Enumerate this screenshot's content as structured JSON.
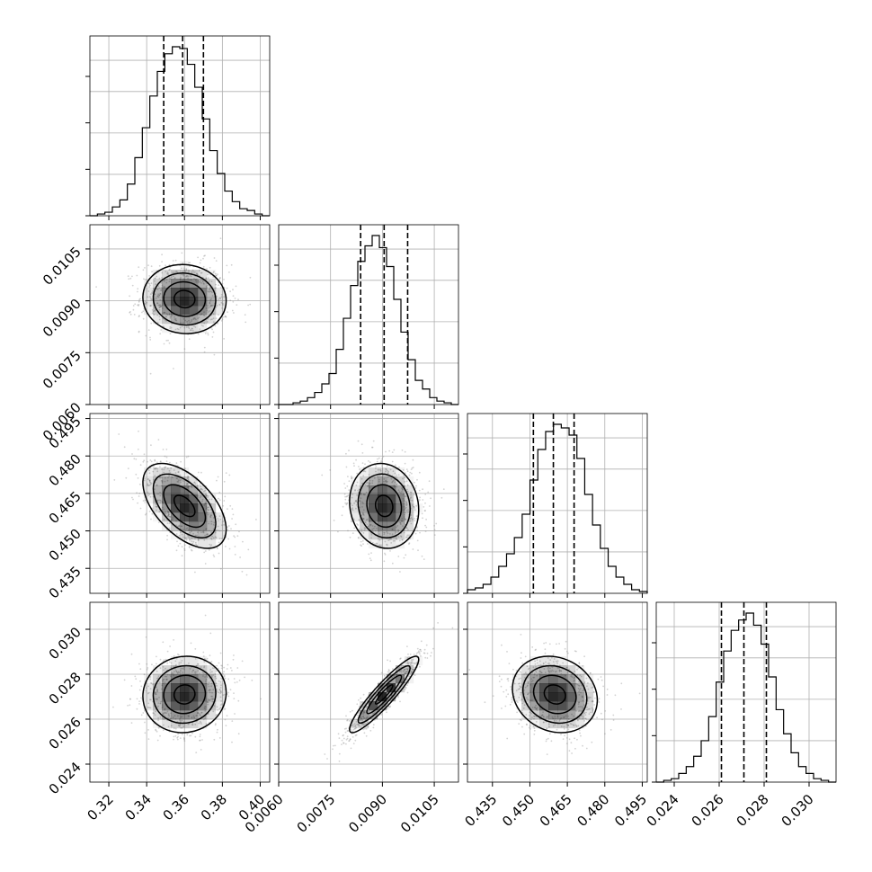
{
  "chart_data": {
    "type": "corner",
    "grid": true,
    "parameters": [
      {
        "id": "p0",
        "range": [
          0.31,
          0.405
        ],
        "ticks": [
          "0.32",
          "0.34",
          "0.36",
          "0.38",
          "0.40"
        ],
        "tick_values": [
          0.32,
          0.34,
          0.36,
          0.38,
          0.4
        ],
        "quantiles": [
          0.349,
          0.359,
          0.37
        ],
        "histogram": [
          0,
          1,
          2,
          5,
          9,
          18,
          33,
          50,
          68,
          82,
          92,
          96,
          95,
          86,
          73,
          55,
          37,
          24,
          14,
          8,
          4,
          3,
          1,
          0
        ]
      },
      {
        "id": "p1",
        "range": [
          0.006,
          0.0112
        ],
        "ticks": [
          "0.0060",
          "0.0075",
          "0.0090",
          "0.0105"
        ],
        "tick_values": [
          0.006,
          0.0075,
          0.009,
          0.0105
        ],
        "quantiles": [
          0.00837,
          0.00905,
          0.00973
        ],
        "histogram": [
          0,
          0,
          1,
          2,
          4,
          7,
          12,
          18,
          32,
          50,
          69,
          83,
          92,
          98,
          91,
          80,
          61,
          42,
          26,
          14,
          9,
          4,
          2,
          1,
          0
        ]
      },
      {
        "id": "p2",
        "range": [
          0.425,
          0.497
        ],
        "ticks": [
          "0.435",
          "0.450",
          "0.465",
          "0.480",
          "0.495"
        ],
        "tick_values": [
          0.435,
          0.45,
          0.465,
          0.48,
          0.495
        ],
        "quantiles": [
          0.4514,
          0.4594,
          0.4677
        ],
        "histogram": [
          2,
          3,
          5,
          9,
          15,
          22,
          31,
          44,
          63,
          80,
          90,
          94,
          92,
          88,
          75,
          55,
          38,
          25,
          15,
          9,
          5,
          2,
          1
        ]
      },
      {
        "id": "p3",
        "range": [
          0.0232,
          0.0312
        ],
        "ticks": [
          "0.024",
          "0.026",
          "0.028",
          "0.030"
        ],
        "tick_values": [
          0.024,
          0.026,
          0.028,
          0.03
        ],
        "quantiles": [
          0.0261,
          0.0271,
          0.0281
        ],
        "histogram": [
          0,
          1,
          2,
          5,
          9,
          15,
          24,
          38,
          58,
          76,
          88,
          94,
          98,
          91,
          80,
          61,
          42,
          28,
          17,
          9,
          5,
          2,
          1,
          0
        ]
      }
    ],
    "pairs": [
      {
        "x": "p0",
        "y": "p1",
        "center": [
          0.36,
          0.00905
        ],
        "spread": [
          0.011,
          0.0005
        ],
        "correlation": -0.05
      },
      {
        "x": "p0",
        "y": "p2",
        "center": [
          0.36,
          0.46
        ],
        "spread": [
          0.011,
          0.0085
        ],
        "correlation": -0.55
      },
      {
        "x": "p1",
        "y": "p2",
        "center": [
          0.00905,
          0.46
        ],
        "spread": [
          0.0005,
          0.0085
        ],
        "correlation": -0.1
      },
      {
        "x": "p0",
        "y": "p3",
        "center": [
          0.36,
          0.0271
        ],
        "spread": [
          0.011,
          0.00085
        ],
        "correlation": 0.05
      },
      {
        "x": "p1",
        "y": "p3",
        "center": [
          0.00905,
          0.0271
        ],
        "spread": [
          0.0005,
          0.00085
        ],
        "correlation": 0.92
      },
      {
        "x": "p2",
        "y": "p3",
        "center": [
          0.46,
          0.0271
        ],
        "spread": [
          0.0085,
          0.00085
        ],
        "correlation": -0.15
      }
    ],
    "colors": {
      "line": "#000000",
      "grid": "#b0b0b0",
      "density": "#000000",
      "points": "#808080"
    }
  }
}
